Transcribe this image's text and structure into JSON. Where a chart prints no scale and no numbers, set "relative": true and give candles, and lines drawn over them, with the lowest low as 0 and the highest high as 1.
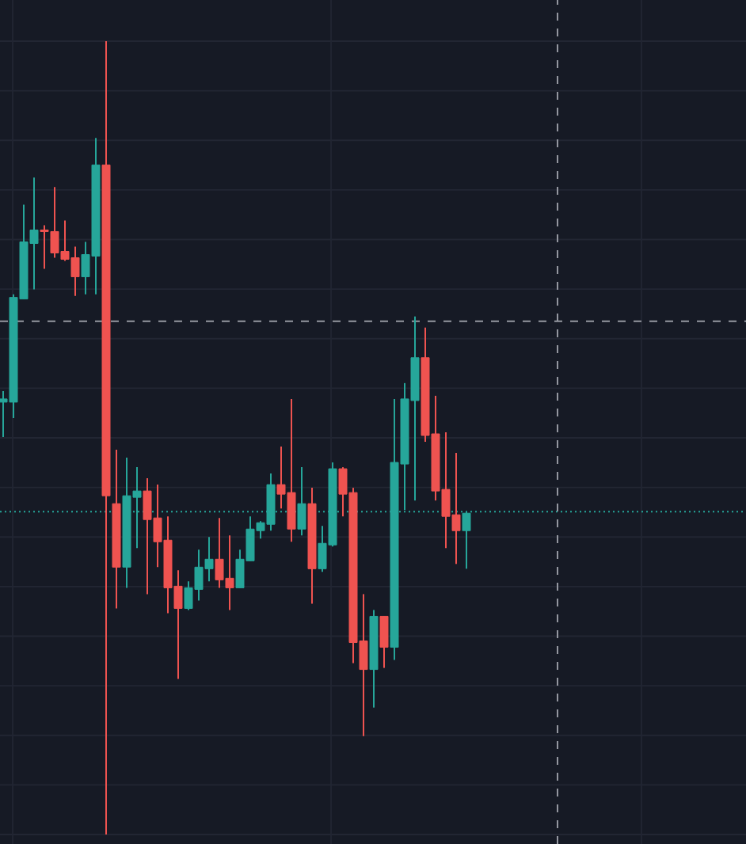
{
  "chart_data": {
    "type": "candlestick",
    "relative": true,
    "categories": [
      null,
      null,
      null,
      null,
      null,
      null,
      null,
      null,
      null,
      null,
      null,
      null,
      null,
      null,
      null,
      null,
      null,
      null,
      null,
      null,
      null,
      null,
      null,
      null,
      null,
      null,
      null,
      null,
      null,
      null,
      null,
      null,
      null,
      null,
      null,
      null,
      null,
      null,
      null,
      null,
      null,
      null,
      null,
      null,
      null,
      null
    ],
    "ohlc": [
      [
        0.545,
        0.559,
        0.501,
        0.549
      ],
      [
        0.545,
        0.681,
        0.525,
        0.677
      ],
      [
        0.675,
        0.794,
        0.675,
        0.747
      ],
      [
        0.745,
        0.828,
        0.687,
        0.762
      ],
      [
        0.762,
        0.768,
        0.713,
        0.76
      ],
      [
        0.76,
        0.816,
        0.727,
        0.733
      ],
      [
        0.735,
        0.774,
        0.723,
        0.725
      ],
      [
        0.727,
        0.741,
        0.679,
        0.703
      ],
      [
        0.703,
        0.747,
        0.681,
        0.731
      ],
      [
        0.729,
        0.878,
        0.681,
        0.844
      ],
      [
        0.844,
        1.0,
        0.0,
        0.427
      ],
      [
        0.417,
        0.485,
        0.285,
        0.337
      ],
      [
        0.337,
        0.475,
        0.311,
        0.427
      ],
      [
        0.425,
        0.463,
        0.361,
        0.433
      ],
      [
        0.433,
        0.449,
        0.303,
        0.397
      ],
      [
        0.399,
        0.441,
        0.337,
        0.369
      ],
      [
        0.371,
        0.401,
        0.279,
        0.311
      ],
      [
        0.313,
        0.333,
        0.196,
        0.285
      ],
      [
        0.285,
        0.319,
        0.283,
        0.311
      ],
      [
        0.309,
        0.359,
        0.295,
        0.337
      ],
      [
        0.335,
        0.375,
        0.319,
        0.347
      ],
      [
        0.347,
        0.399,
        0.311,
        0.321
      ],
      [
        0.323,
        0.377,
        0.283,
        0.311
      ],
      [
        0.311,
        0.359,
        0.311,
        0.347
      ],
      [
        0.345,
        0.401,
        0.345,
        0.385
      ],
      [
        0.383,
        0.395,
        0.373,
        0.393
      ],
      [
        0.391,
        0.455,
        0.383,
        0.441
      ],
      [
        0.441,
        0.489,
        0.411,
        0.429
      ],
      [
        0.431,
        0.549,
        0.369,
        0.385
      ],
      [
        0.385,
        0.463,
        0.377,
        0.417
      ],
      [
        0.417,
        0.437,
        0.291,
        0.335
      ],
      [
        0.335,
        0.389,
        0.331,
        0.367
      ],
      [
        0.365,
        0.469,
        0.363,
        0.461
      ],
      [
        0.461,
        0.463,
        0.401,
        0.429
      ],
      [
        0.431,
        0.437,
        0.216,
        0.242
      ],
      [
        0.244,
        0.303,
        0.124,
        0.208
      ],
      [
        0.208,
        0.283,
        0.16,
        0.275
      ],
      [
        0.275,
        0.275,
        0.21,
        0.236
      ],
      [
        0.236,
        0.549,
        0.22,
        0.469
      ],
      [
        0.467,
        0.569,
        0.409,
        0.549
      ],
      [
        0.547,
        0.653,
        0.421,
        0.601
      ],
      [
        0.601,
        0.639,
        0.495,
        0.503
      ],
      [
        0.505,
        0.553,
        0.421,
        0.433
      ],
      [
        0.435,
        0.507,
        0.361,
        0.401
      ],
      [
        0.403,
        0.481,
        0.341,
        0.383
      ],
      [
        0.383,
        0.407,
        0.335,
        0.405
      ]
    ],
    "colors": [
      "#26a69a",
      "#26a69a",
      "#26a69a",
      "#26a69a",
      "#ef5350",
      "#ef5350",
      "#ef5350",
      "#ef5350",
      "#26a69a",
      "#26a69a",
      "#ef5350",
      "#ef5350",
      "#26a69a",
      "#26a69a",
      "#ef5350",
      "#ef5350",
      "#ef5350",
      "#ef5350",
      "#26a69a",
      "#26a69a",
      "#26a69a",
      "#ef5350",
      "#ef5350",
      "#26a69a",
      "#26a69a",
      "#26a69a",
      "#26a69a",
      "#ef5350",
      "#ef5350",
      "#26a69a",
      "#ef5350",
      "#26a69a",
      "#26a69a",
      "#ef5350",
      "#ef5350",
      "#ef5350",
      "#26a69a",
      "#ef5350",
      "#26a69a",
      "#26a69a",
      "#26a69a",
      "#ef5350",
      "#ef5350",
      "#ef5350",
      "#ef5350",
      "#26a69a"
    ],
    "grid": true,
    "ref_lines": [
      {
        "axis": "y",
        "value": 0.647,
        "color": "#9598a1",
        "line_style": "dashed"
      },
      {
        "axis": "y",
        "value": 0.407,
        "color": "#26a69a",
        "line_style": "dotted"
      }
    ]
  }
}
